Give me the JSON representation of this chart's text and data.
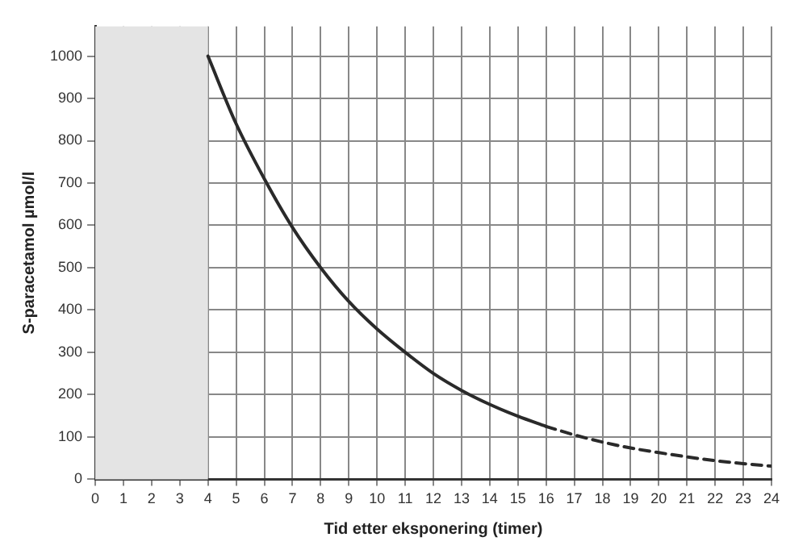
{
  "chart_data": {
    "type": "line",
    "xlabel": "Tid etter eksponering (timer)",
    "ylabel": "S-paracetamol µmol/l",
    "xlim": [
      0,
      24
    ],
    "xticks": [
      0,
      1,
      2,
      3,
      4,
      5,
      6,
      7,
      8,
      9,
      10,
      11,
      12,
      13,
      14,
      15,
      16,
      17,
      18,
      19,
      20,
      21,
      22,
      23,
      24
    ],
    "ylim": [
      0,
      1070
    ],
    "yticks": [
      0,
      100,
      200,
      300,
      400,
      500,
      600,
      700,
      800,
      900,
      1000
    ],
    "grid": true,
    "legend": false,
    "marker": "none",
    "bands": [
      {
        "axis": "x",
        "from": 0,
        "to": 4,
        "color": "#e4e4e4"
      }
    ],
    "series": [
      {
        "color": "#2a2a2a",
        "line_style": "solid",
        "x": [
          4,
          5,
          6,
          7,
          8,
          9,
          10,
          11,
          12,
          13,
          14,
          15,
          16
        ],
        "values": [
          1000,
          840,
          710,
          595,
          500,
          420,
          355,
          300,
          250,
          210,
          177,
          149,
          125
        ]
      },
      {
        "color": "#2a2a2a",
        "line_style": "dashed",
        "x": [
          16,
          17,
          18,
          19,
          20,
          21,
          22,
          23,
          24
        ],
        "values": [
          125,
          105,
          88,
          74,
          63,
          53,
          44,
          37,
          31
        ]
      }
    ]
  }
}
